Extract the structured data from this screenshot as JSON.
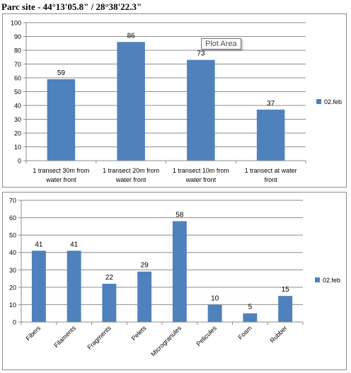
{
  "page_title": "Parc site - 44°13'05.8\" / 28°38'22.3\"",
  "tooltip": "Plot Area",
  "colors": {
    "bar": "#4f81bd",
    "grid": "#8c8c8c",
    "axis": "#8c8c8c",
    "text": "#000000"
  },
  "chart_data": [
    {
      "type": "bar",
      "categories": [
        [
          "1  transect 30m  from",
          "water front"
        ],
        [
          "1  transect 20m  from",
          "water front"
        ],
        [
          "1  transect 10m  from",
          "water front"
        ],
        [
          "1  transect at water",
          "front"
        ]
      ],
      "series": [
        {
          "name": "02.feb",
          "values": [
            59,
            86,
            73,
            37
          ]
        }
      ],
      "ylim": [
        0,
        100
      ],
      "yticks": [
        0,
        10,
        20,
        30,
        40,
        50,
        60,
        70,
        80,
        90,
        100
      ],
      "grid": true,
      "legend": "right",
      "data_labels": true
    },
    {
      "type": "bar",
      "categories": [
        "Fibers",
        "Filaments",
        "Fragments",
        "Pelets",
        "Microgranules",
        "Pelicules",
        "Foam",
        "Rubber"
      ],
      "series": [
        {
          "name": "02.feb",
          "values": [
            41,
            41,
            22,
            29,
            58,
            10,
            5,
            15
          ]
        }
      ],
      "ylim": [
        0,
        70
      ],
      "yticks": [
        0,
        10,
        20,
        30,
        40,
        50,
        60,
        70
      ],
      "grid": true,
      "legend": "right",
      "data_labels": true,
      "rotated_category_labels": true
    }
  ]
}
